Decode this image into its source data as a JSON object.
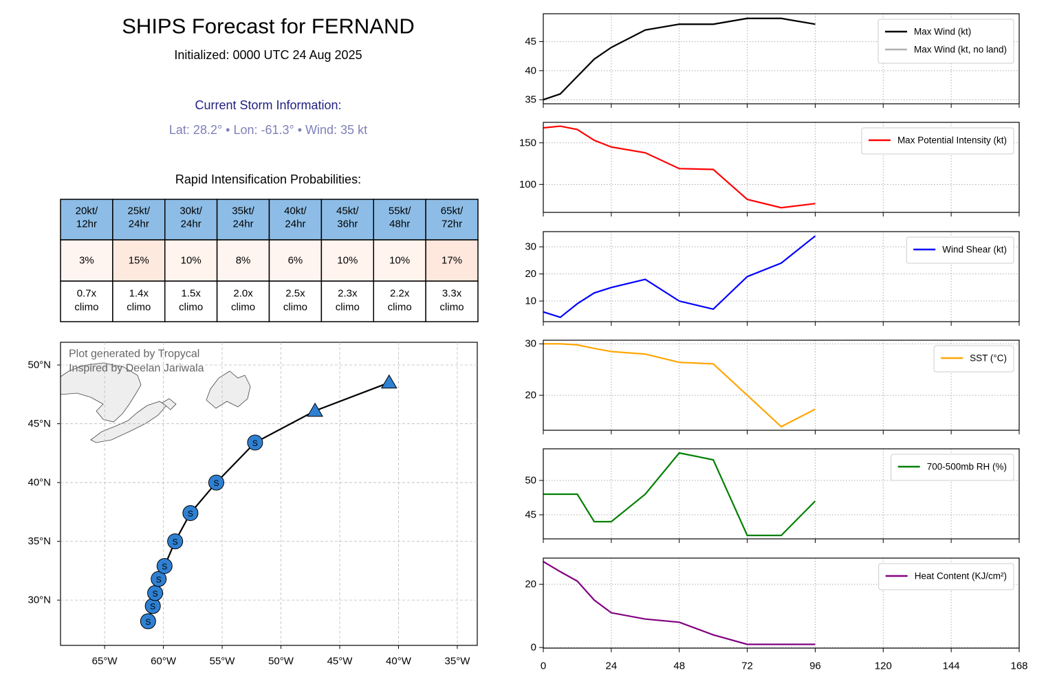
{
  "header": {
    "title": "SHIPS Forecast for FERNAND",
    "initialized": "Initialized: 0000 UTC 24 Aug 2025"
  },
  "storm_info": {
    "heading": "Current Storm Information:",
    "details": "Lat: 28.2° • Lon: -61.3° • Wind: 35 kt"
  },
  "ri_table": {
    "title": "Rapid Intensification Probabilities:",
    "columns": [
      [
        "20kt/",
        "12hr"
      ],
      [
        "25kt/",
        "24hr"
      ],
      [
        "30kt/",
        "24hr"
      ],
      [
        "35kt/",
        "24hr"
      ],
      [
        "40kt/",
        "24hr"
      ],
      [
        "45kt/",
        "36hr"
      ],
      [
        "55kt/",
        "48hr"
      ],
      [
        "65kt/",
        "72hr"
      ]
    ],
    "probabilities": [
      "3%",
      "15%",
      "10%",
      "8%",
      "6%",
      "10%",
      "10%",
      "17%"
    ],
    "prob_colors": [
      "#fff5f0",
      "#fee9df",
      "#fff4ee",
      "#fff5f0",
      "#fff5f0",
      "#fff4ee",
      "#fff4ee",
      "#fee7dc"
    ],
    "climo": [
      [
        "0.7x",
        "climo"
      ],
      [
        "1.4x",
        "climo"
      ],
      [
        "1.5x",
        "climo"
      ],
      [
        "2.0x",
        "climo"
      ],
      [
        "2.5x",
        "climo"
      ],
      [
        "2.3x",
        "climo"
      ],
      [
        "2.2x",
        "climo"
      ],
      [
        "3.3x",
        "climo"
      ]
    ],
    "header_color": "#8dbde6"
  },
  "chart_data": [
    {
      "type": "map",
      "annotations": [
        "Plot generated by Tropycal",
        "Inspired by Deelan Jariwala"
      ],
      "xlim": [
        -68.75,
        -33.3
      ],
      "ylim": [
        26.15,
        51.93
      ],
      "xticks": [
        {
          "value": -65,
          "label": "65°W"
        },
        {
          "value": -60,
          "label": "60°W"
        },
        {
          "value": -55,
          "label": "55°W"
        },
        {
          "value": -50,
          "label": "50°W"
        },
        {
          "value": -45,
          "label": "45°W"
        },
        {
          "value": -40,
          "label": "40°W"
        },
        {
          "value": -35,
          "label": "35°W"
        }
      ],
      "yticks": [
        {
          "value": 30,
          "label": "30°N"
        },
        {
          "value": 35,
          "label": "35°N"
        },
        {
          "value": 40,
          "label": "40°N"
        },
        {
          "value": 45,
          "label": "45°N"
        },
        {
          "value": 50,
          "label": "50°N"
        }
      ],
      "grid": true,
      "track": {
        "color": "#2f80d2",
        "lon": [
          -61.3,
          -60.9,
          -60.7,
          -60.4,
          -59.9,
          -59.0,
          -57.7,
          -55.5,
          -52.2,
          -47.1,
          -40.8
        ],
        "lat": [
          28.2,
          29.5,
          30.6,
          31.8,
          32.9,
          35.0,
          37.4,
          40.0,
          43.4,
          46.1,
          48.5
        ],
        "labels": [
          "S",
          "S",
          "S",
          "S",
          "S",
          "S",
          "S",
          "S",
          "S",
          null,
          null
        ],
        "markers": [
          "circle",
          "circle",
          "circle",
          "circle",
          "circle",
          "circle",
          "circle",
          "circle",
          "circle",
          "triangle",
          "triangle"
        ]
      }
    },
    {
      "type": "line",
      "x": [
        0,
        6,
        12,
        18,
        24,
        36,
        48,
        60,
        72,
        84,
        96
      ],
      "xlim": [
        0,
        168
      ],
      "xticks": [
        0,
        24,
        48,
        72,
        96,
        120,
        144,
        168
      ],
      "xtick_labels": false,
      "ylim": [
        34.3,
        49.8
      ],
      "yticks": [
        35,
        40,
        45
      ],
      "grid": true,
      "legend": "upper right",
      "series": [
        {
          "name": "Max Wind (kt)",
          "color": "#000000",
          "values": [
            35,
            36,
            39,
            42,
            44,
            47,
            48,
            48,
            49,
            49,
            48
          ]
        },
        {
          "name": "Max Wind (kt, no land)",
          "color": "#b0b0b0",
          "values": [
            35,
            36,
            39,
            42,
            44,
            47,
            48,
            48,
            49,
            49,
            48
          ]
        }
      ]
    },
    {
      "type": "line",
      "x": [
        0,
        6,
        12,
        18,
        24,
        36,
        48,
        60,
        72,
        84,
        96
      ],
      "xlim": [
        0,
        168
      ],
      "xticks": [
        0,
        24,
        48,
        72,
        96,
        120,
        144,
        168
      ],
      "xtick_labels": false,
      "ylim": [
        66.4,
        174.6
      ],
      "yticks": [
        100,
        150
      ],
      "grid": true,
      "legend": "upper right",
      "series": [
        {
          "name": "Max Potential Intensity (kt)",
          "color": "#ff0000",
          "values": [
            168,
            170,
            166,
            153,
            145,
            138,
            119,
            118,
            82,
            72,
            77
          ]
        }
      ]
    },
    {
      "type": "line",
      "x": [
        0,
        6,
        12,
        18,
        24,
        36,
        48,
        60,
        72,
        84,
        96
      ],
      "xlim": [
        0,
        168
      ],
      "xticks": [
        0,
        24,
        48,
        72,
        96,
        120,
        144,
        168
      ],
      "xtick_labels": false,
      "ylim": [
        2.4,
        35.6
      ],
      "yticks": [
        10,
        20,
        30
      ],
      "grid": true,
      "legend": "upper right",
      "series": [
        {
          "name": "Wind Shear (kt)",
          "color": "#0000ff",
          "values": [
            6,
            4,
            9,
            13,
            15,
            18,
            10,
            7,
            19,
            24,
            34
          ]
        }
      ]
    },
    {
      "type": "line",
      "x": [
        0,
        6,
        12,
        18,
        24,
        36,
        48,
        60,
        72,
        84,
        96
      ],
      "xlim": [
        0,
        168
      ],
      "xticks": [
        0,
        24,
        48,
        72,
        96,
        120,
        144,
        168
      ],
      "xtick_labels": false,
      "ylim": [
        13.2,
        30.7
      ],
      "yticks": [
        20,
        30
      ],
      "grid": true,
      "legend": "upper right",
      "series": [
        {
          "name": "SST (°C)",
          "color": "#ffa500",
          "values": [
            30.0,
            30.0,
            29.8,
            29.1,
            28.5,
            28.0,
            26.4,
            26.1,
            20.0,
            13.9,
            17.3
          ]
        }
      ]
    },
    {
      "type": "line",
      "x": [
        0,
        6,
        12,
        18,
        24,
        36,
        48,
        60,
        72,
        84,
        96
      ],
      "xlim": [
        0,
        168
      ],
      "xticks": [
        0,
        24,
        48,
        72,
        96,
        120,
        144,
        168
      ],
      "xtick_labels": false,
      "ylim": [
        41.5,
        54.6
      ],
      "yticks": [
        45,
        50
      ],
      "grid": true,
      "legend": "upper right",
      "series": [
        {
          "name": "700-500mb RH (%)",
          "color": "#008000",
          "values": [
            48,
            48,
            48,
            44,
            44,
            48,
            54,
            53,
            42,
            42,
            47
          ]
        }
      ]
    },
    {
      "type": "line",
      "x": [
        0,
        6,
        12,
        18,
        24,
        36,
        48,
        60,
        72,
        84,
        96
      ],
      "xlim": [
        0,
        168
      ],
      "xticks": [
        0,
        24,
        48,
        72,
        96,
        120,
        144,
        168
      ],
      "xtick_labels": true,
      "ylim": [
        -0.2,
        28.3
      ],
      "yticks": [
        0,
        20
      ],
      "grid": true,
      "legend": "upper right",
      "series": [
        {
          "name": "Heat Content (KJ/cm²)",
          "color": "#800080",
          "values": [
            27.2,
            24,
            21,
            15,
            11,
            9,
            8,
            4,
            1,
            1,
            1
          ]
        }
      ]
    }
  ]
}
